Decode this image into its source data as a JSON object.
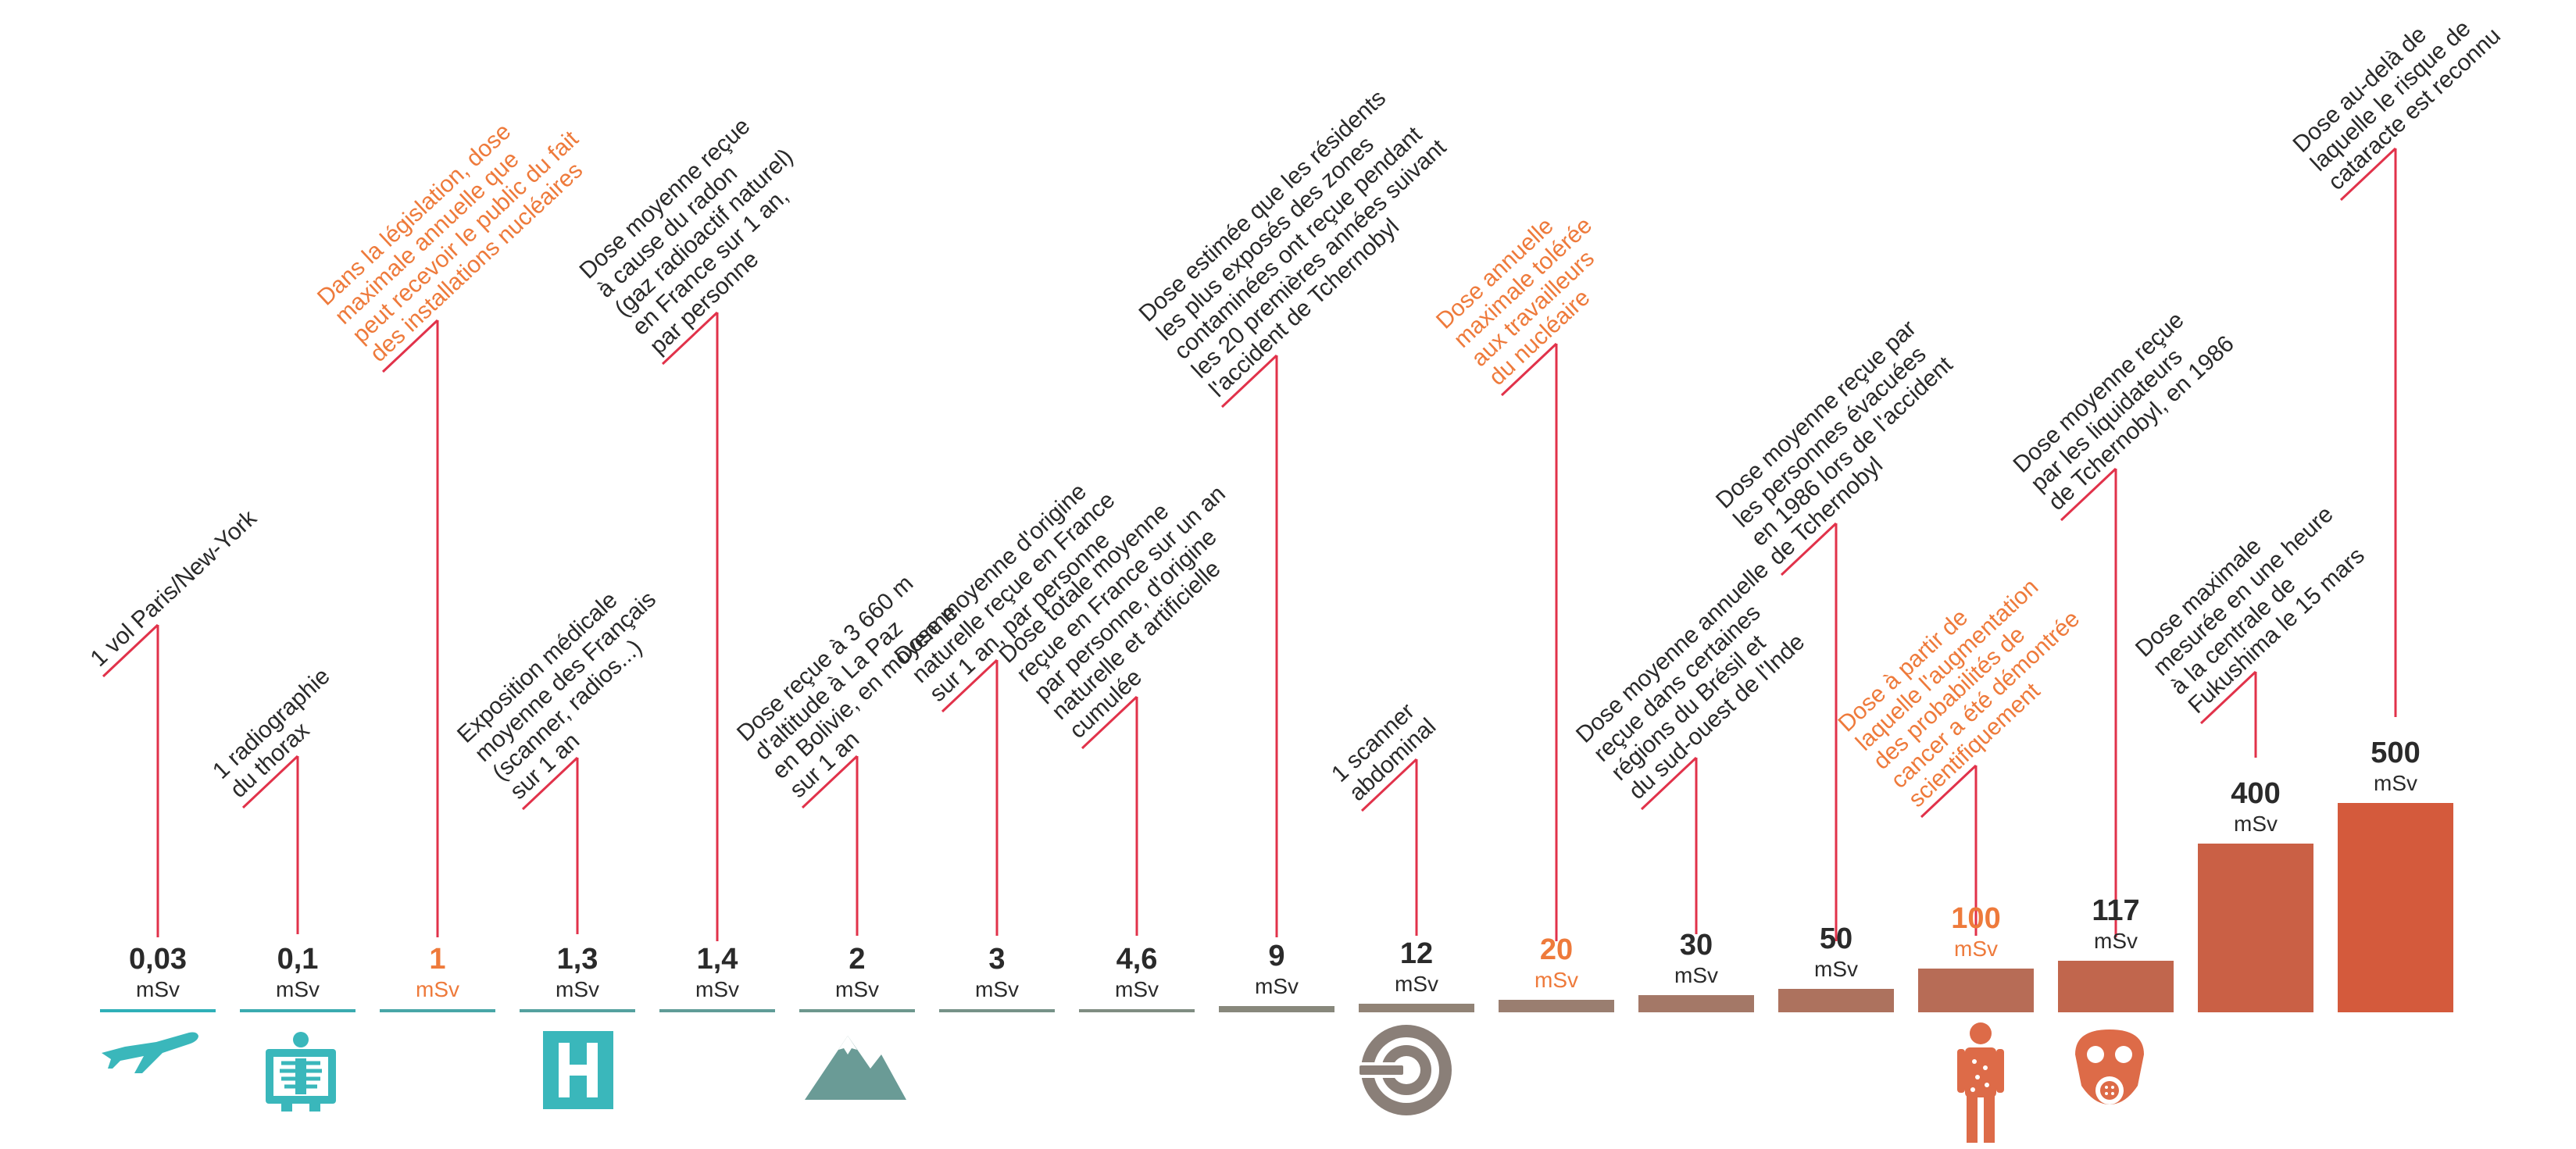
{
  "chart_data": {
    "type": "bar",
    "title": "",
    "unit": "mSv",
    "items": [
      {
        "value_label": "0,03",
        "value": 0.03,
        "highlight": false,
        "icon": "airplane-icon",
        "annotation": [
          "1 vol Paris/New-York"
        ]
      },
      {
        "value_label": "0,1",
        "value": 0.1,
        "highlight": false,
        "icon": "xray-icon",
        "annotation": [
          "1 radiographie",
          "du thorax"
        ]
      },
      {
        "value_label": "1",
        "value": 1,
        "highlight": true,
        "icon": "",
        "annotation": [
          "Dans la législation, dose",
          "maximale annuelle que",
          "peut recevoir le public du fait",
          "des installations nucléaires"
        ]
      },
      {
        "value_label": "1,3",
        "value": 1.3,
        "highlight": false,
        "icon": "hospital-icon",
        "annotation": [
          "Exposition médicale",
          "moyenne des Français",
          "(scanner, radios...)",
          "sur 1 an"
        ]
      },
      {
        "value_label": "1,4",
        "value": 1.4,
        "highlight": false,
        "icon": "",
        "annotation": [
          "Dose moyenne reçue",
          "à cause du radon",
          "(gaz radioactif naturel)",
          "en France sur 1 an,",
          "par personne"
        ]
      },
      {
        "value_label": "2",
        "value": 2,
        "highlight": false,
        "icon": "mountain-icon",
        "annotation": [
          "Dose reçue à 3 660 m",
          "d'altitude à La Paz",
          "en Bolivie, en moyenne",
          "sur 1 an"
        ]
      },
      {
        "value_label": "3",
        "value": 3,
        "highlight": false,
        "icon": "",
        "annotation": [
          "Dose moyenne d'origine",
          "naturelle reçue en France",
          "sur 1 an, par personne"
        ]
      },
      {
        "value_label": "4,6",
        "value": 4.6,
        "highlight": false,
        "icon": "",
        "annotation": [
          "Dose totale moyenne",
          "reçue en France sur un an",
          "par personne, d'origine",
          "naturelle et artificielle",
          "cumulée"
        ]
      },
      {
        "value_label": "9",
        "value": 9,
        "highlight": false,
        "icon": "",
        "annotation": [
          "Dose estimée que les résidents",
          "les plus exposés des zones",
          "contaminées ont reçue pendant",
          "les 20 premières années suivant",
          "l'accident de Tchernobyl"
        ]
      },
      {
        "value_label": "12",
        "value": 12,
        "highlight": false,
        "icon": "scanner-icon",
        "annotation": [
          "1 scanner",
          "abdominal"
        ]
      },
      {
        "value_label": "20",
        "value": 20,
        "highlight": true,
        "icon": "",
        "annotation": [
          "Dose annuelle",
          "maximale tolérée",
          "aux travailleurs",
          "du nucléaire"
        ]
      },
      {
        "value_label": "30",
        "value": 30,
        "highlight": false,
        "icon": "",
        "annotation": [
          "Dose moyenne annuelle",
          "reçue dans certaines",
          "régions du Brésil et",
          "du sud-ouest de l'Inde"
        ]
      },
      {
        "value_label": "50",
        "value": 50,
        "highlight": false,
        "icon": "",
        "annotation": [
          "Dose moyenne reçue par",
          "les personnes évacuées",
          "en 1986 lors de l'accident",
          "de Tchernobyl"
        ]
      },
      {
        "value_label": "100",
        "value": 100,
        "highlight": true,
        "icon": "body-icon",
        "annotation": [
          "Dose à partir de",
          "laquelle l'augmentation",
          "des probabilités de",
          "cancer a été démontrée",
          "scientifiquement"
        ]
      },
      {
        "value_label": "117",
        "value": 117,
        "highlight": false,
        "icon": "gas-mask-icon",
        "annotation": [
          "Dose moyenne reçue",
          "par les liquidateurs",
          "de Tchernobyl, en 1986"
        ]
      },
      {
        "value_label": "400",
        "value": 400,
        "highlight": false,
        "icon": "",
        "annotation": [
          "Dose maximale",
          "mesurée en une heure",
          "à la centrale de",
          "Fukushima le 15 mars"
        ]
      },
      {
        "value_label": "500",
        "value": 500,
        "highlight": false,
        "icon": "",
        "annotation": [
          "Dose au-delà de",
          "laquelle le risque de",
          "cataracte est reconnu"
        ]
      }
    ],
    "colors": {
      "text": "#2a2a2a",
      "highlight": "#ee7a3b",
      "leader": "#e1324a",
      "teal": "#2fb0b8",
      "icon_teal": "#3ab7bb",
      "icon_grey": "#8a7f78",
      "icon_orange": "#dd6b48"
    }
  }
}
